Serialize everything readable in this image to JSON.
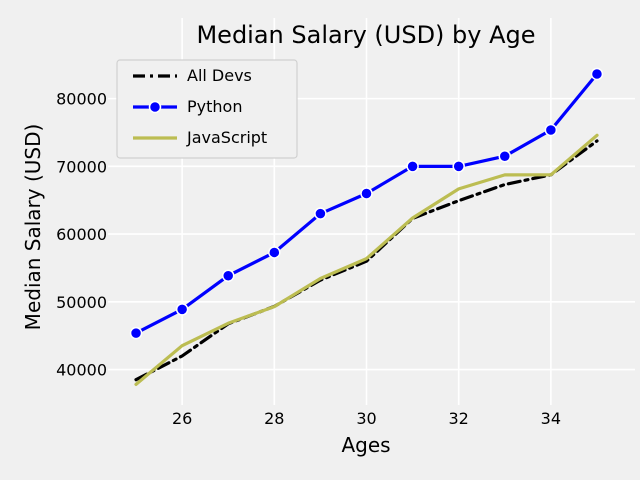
{
  "chart_data": {
    "type": "line",
    "title": "Median Salary (USD) by Age",
    "xlabel": "Ages",
    "ylabel": "Median Salary (USD)",
    "x": [
      25,
      26,
      27,
      28,
      29,
      30,
      31,
      32,
      33,
      34,
      35
    ],
    "xlim": [
      24.5,
      35.5
    ],
    "ylim": [
      35500,
      86000
    ],
    "xticks": [
      26,
      28,
      30,
      32,
      34
    ],
    "yticks": [
      40000,
      50000,
      60000,
      70000,
      80000
    ],
    "grid": true,
    "legend_position": "top-left",
    "series": [
      {
        "name": "All Devs",
        "values": [
          38496,
          42000,
          46752,
          49320,
          53200,
          56000,
          62316,
          64928,
          67317,
          68748,
          73752
        ],
        "color": "#000000",
        "style": "dashdot",
        "marker": "none"
      },
      {
        "name": "Python",
        "values": [
          45372,
          48876,
          53850,
          57287,
          63016,
          65998,
          70003,
          70000,
          71496,
          75370,
          83640
        ],
        "color": "#0000ff",
        "style": "solid",
        "marker": "circle"
      },
      {
        "name": "JavaScript",
        "values": [
          37810,
          43515,
          46823,
          49293,
          53437,
          56373,
          62375,
          66674,
          68745,
          68746,
          74583
        ],
        "color": "#bcbd52",
        "style": "solid",
        "marker": "none"
      }
    ]
  }
}
